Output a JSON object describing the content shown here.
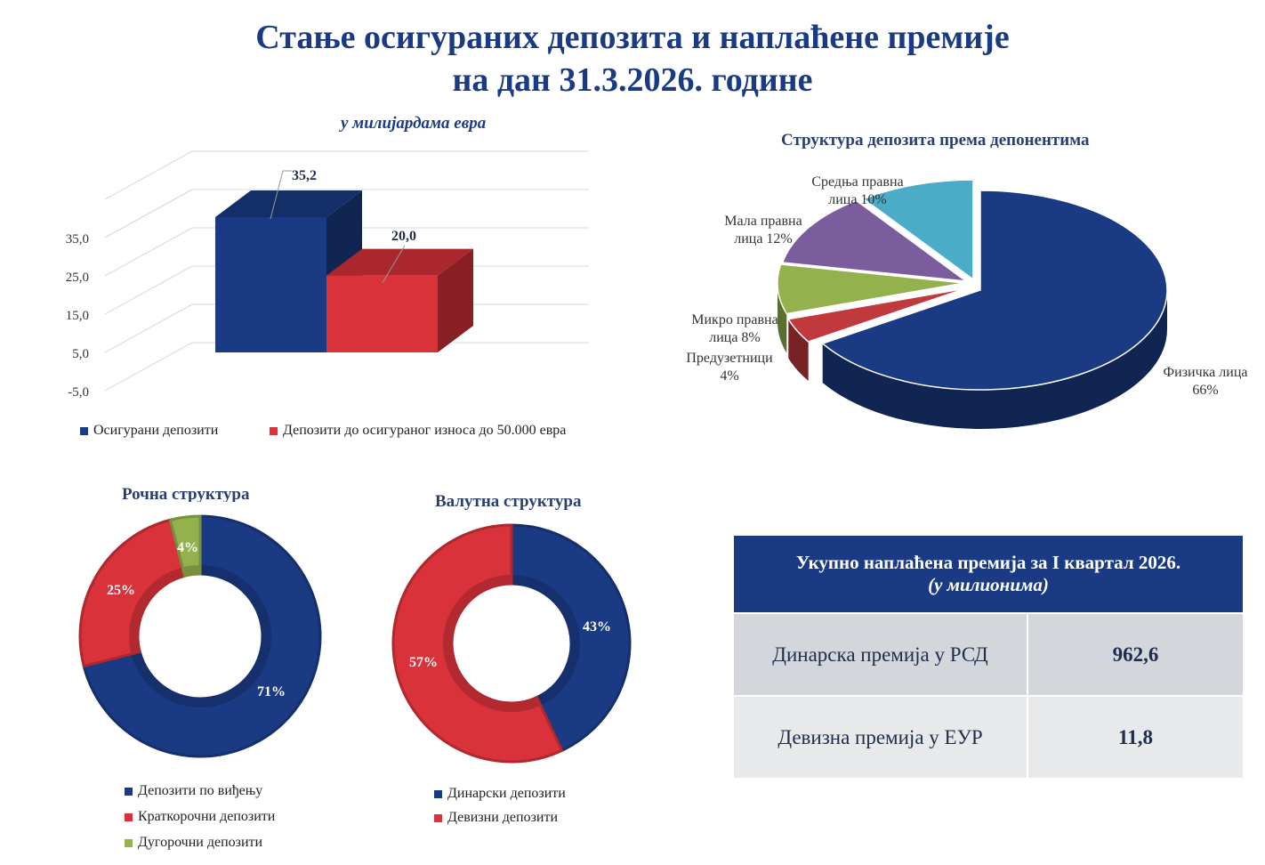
{
  "header": {
    "title_line1": "Стање осигураних депозита и наплаћене премије",
    "title_line2": "на дан 31.3.2026. године"
  },
  "bar_chart": {
    "subtitle": "у милијардама   евра"
  },
  "pie_chart": {
    "title": "Структура депозита према депонентима"
  },
  "donut_maturity": {
    "title": "Рочна структура"
  },
  "donut_currency": {
    "title": "Валутна структура"
  },
  "premium": {
    "heading_line1": "Укупно наплаћена премија за I квартал 2026.",
    "heading_line2": "(у милионима)",
    "rows": [
      {
        "label": "Динарска премија у РСД",
        "value": "962,6"
      },
      {
        "label": "Девизна премија у ЕУР",
        "value": "11,8"
      }
    ]
  },
  "chart_data": [
    {
      "type": "bar",
      "title": "",
      "unit": "у милијардама евра",
      "categories": [
        ""
      ],
      "series": [
        {
          "name": "Осигурани депозити",
          "values": [
            35.2
          ],
          "label": "35,2",
          "color": "#1a3b84"
        },
        {
          "name": "Депозити до осигураног износа до 50.000 евра",
          "values": [
            20.0
          ],
          "label": "20,0",
          "color": "#d9323a"
        }
      ],
      "yticks": [
        "35,0",
        "25,0",
        "15,0",
        "5,0",
        "-5,0"
      ],
      "ylim": [
        -5,
        35
      ],
      "grid": true,
      "legend": "bottom"
    },
    {
      "type": "pie",
      "title": "Структура депозита према депонентима",
      "slices": [
        {
          "label_lines": [
            "Физичка лица",
            "66%"
          ],
          "value": 66,
          "color": "#1a3b84"
        },
        {
          "label_lines": [
            "Предузетници",
            "4%"
          ],
          "value": 4,
          "color": "#c0393d"
        },
        {
          "label_lines": [
            "Микро правна",
            "лица 8%"
          ],
          "value": 8,
          "color": "#93b14d"
        },
        {
          "label_lines": [
            "Мала правна",
            "лица 12%"
          ],
          "value": 12,
          "color": "#7b5d9e"
        },
        {
          "label_lines": [
            "Средња правна",
            "лица 10%"
          ],
          "value": 10,
          "color": "#4aacc6"
        }
      ]
    },
    {
      "type": "pie",
      "title": "Рочна структура",
      "slices": [
        {
          "name": "Депозити по виђењу",
          "value": 71,
          "label": "71%",
          "color": "#1a3b84"
        },
        {
          "name": "Краткорочни депозити",
          "value": 25,
          "label": "25%",
          "color": "#d9323a"
        },
        {
          "name": "Дугорочни депозити",
          "value": 4,
          "label": "4%",
          "color": "#93b14d"
        }
      ],
      "legend": "bottom"
    },
    {
      "type": "pie",
      "title": "Валутна структура",
      "slices": [
        {
          "name": "Динарски депозити",
          "value": 43,
          "label": "43%",
          "color": "#1a3b84"
        },
        {
          "name": "Девизни депозити",
          "value": 57,
          "label": "57%",
          "color": "#d9323a"
        }
      ],
      "legend": "bottom"
    }
  ]
}
